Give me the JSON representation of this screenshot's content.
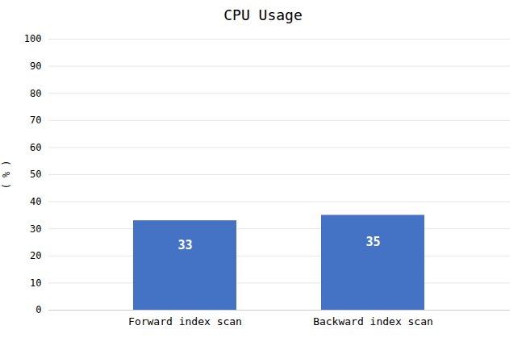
{
  "chart_data": {
    "type": "bar",
    "title": "CPU Usage",
    "categories": [
      "Forward index scan",
      "Backward index scan"
    ],
    "values": [
      33,
      35
    ],
    "color": "#4472C4",
    "ylabel": "( % )",
    "ylim": [
      0,
      100
    ],
    "yticks": [
      0,
      10,
      20,
      30,
      40,
      50,
      60,
      70,
      80,
      90,
      100
    ],
    "grid": true,
    "data_labels": true
  }
}
